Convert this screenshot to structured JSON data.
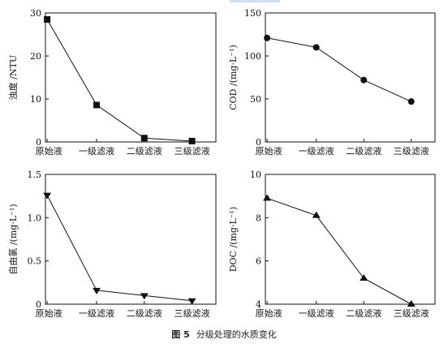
{
  "caption": {
    "figure_no": "图 5",
    "text": "分级处理的水质变化"
  },
  "chart_data": [
    {
      "type": "line",
      "categories": [
        "原始液",
        "一级滤液",
        "二级滤液",
        "三级滤液"
      ],
      "ylabel": "浊度 /NTU",
      "ylim": [
        0,
        30
      ],
      "yticks": [
        "0",
        "10",
        "20",
        "30"
      ],
      "series": [
        {
          "marker": "square",
          "values": [
            28.5,
            8.6,
            0.9,
            0.2
          ]
        }
      ]
    },
    {
      "type": "line",
      "categories": [
        "原始液",
        "一级滤液",
        "二级滤液",
        "三级滤液"
      ],
      "ylabel": "COD /(mg·L⁻¹)",
      "ylim": [
        0,
        150
      ],
      "yticks": [
        "0",
        "50",
        "100",
        "150"
      ],
      "series": [
        {
          "marker": "circle",
          "values": [
            121,
            110,
            72,
            47
          ]
        }
      ]
    },
    {
      "type": "line",
      "categories": [
        "原始液",
        "一级滤液",
        "二级滤液",
        "三级滤液"
      ],
      "ylabel": "自由氯 /(mg·L⁻¹)",
      "ylim": [
        0,
        1.5
      ],
      "yticks": [
        "0",
        "0.5",
        "1.0",
        "1.5"
      ],
      "series": [
        {
          "marker": "triangle-down",
          "values": [
            1.26,
            0.16,
            0.1,
            0.04
          ]
        }
      ]
    },
    {
      "type": "line",
      "categories": [
        "原始液",
        "一级滤液",
        "二级滤液",
        "三级滤液"
      ],
      "ylabel": "DOC /(mg·L⁻¹)",
      "ylim": [
        4,
        10
      ],
      "yticks": [
        "4",
        "6",
        "8",
        "10"
      ],
      "series": [
        {
          "marker": "triangle-up",
          "values": [
            8.9,
            8.1,
            5.2,
            4.0
          ]
        }
      ]
    }
  ]
}
